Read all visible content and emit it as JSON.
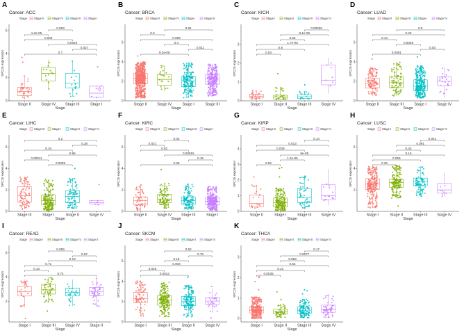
{
  "chart_data": [
    {
      "type": "box",
      "letter": "A",
      "title": "Cancer: ACC",
      "legend_title": "Stage",
      "xlabel": "Stage",
      "ylabel": "SPC25 expression",
      "ylim": [
        0,
        6.4
      ],
      "yticks": [
        0,
        2,
        4,
        6
      ],
      "categories": [
        "Stage II",
        "Stage IV",
        "Stage III",
        "Stage I"
      ],
      "boxes": [
        {
          "lo": 0.1,
          "q1": 0.45,
          "med": 0.8,
          "q3": 1.15,
          "hi": 2.2,
          "outliers": [
            3.3,
            3.7
          ]
        },
        {
          "lo": 0.95,
          "q1": 1.7,
          "med": 2.35,
          "q3": 2.85,
          "hi": 3.5,
          "outliers": []
        },
        {
          "lo": 0.35,
          "q1": 1.1,
          "med": 1.5,
          "q3": 2.35,
          "hi": 3.4,
          "outliers": []
        },
        {
          "lo": 0.2,
          "q1": 0.3,
          "med": 0.65,
          "q3": 1.25,
          "hi": 1.35,
          "outliers": [
            2.9
          ]
        }
      ],
      "comparisons": [
        {
          "a": 1,
          "b": 2,
          "p": "0.003"
        },
        {
          "a": 0,
          "b": 1,
          "p": "1.3e-05"
        },
        {
          "a": 0,
          "b": 2,
          "p": "0.004"
        },
        {
          "a": 1,
          "b": 3,
          "p": "0.0044"
        },
        {
          "a": 2,
          "b": 3,
          "p": "0.027"
        },
        {
          "a": 0,
          "b": 3,
          "p": "0.7"
        }
      ]
    },
    {
      "type": "box",
      "letter": "B",
      "title": "Cancer: BRCA",
      "legend_title": "Stage",
      "xlabel": "Stage",
      "ylabel": "SPC25 expression",
      "ylim": [
        0,
        7.7
      ],
      "yticks": [
        0,
        2,
        4,
        6
      ],
      "categories": [
        "Stage II",
        "Stage IV",
        "Stage I",
        "Stage III"
      ],
      "boxes": [
        {
          "lo": 0.3,
          "q1": 1.75,
          "med": 2.3,
          "q3": 2.8,
          "hi": 4.0,
          "outliers": [
            4.6
          ]
        },
        {
          "lo": 1.0,
          "q1": 1.6,
          "med": 2.2,
          "q3": 2.7,
          "hi": 3.6,
          "outliers": []
        },
        {
          "lo": 0.3,
          "q1": 1.45,
          "med": 2.05,
          "q3": 2.5,
          "hi": 3.9,
          "outliers": []
        },
        {
          "lo": 0.5,
          "q1": 1.7,
          "med": 2.25,
          "q3": 2.75,
          "hi": 3.8,
          "outliers": []
        }
      ],
      "comparisons": [
        {
          "a": 1,
          "b": 3,
          "p": "0.81"
        },
        {
          "a": 0,
          "b": 1,
          "p": "0.5"
        },
        {
          "a": 0,
          "b": 3,
          "p": "0.099"
        },
        {
          "a": 1,
          "b": 2,
          "p": "0.4"
        },
        {
          "a": 2,
          "b": 3,
          "p": "0.011"
        },
        {
          "a": 0,
          "b": 2,
          "p": "9.2e-08"
        }
      ]
    },
    {
      "type": "box",
      "letter": "C",
      "title": "Cancer: KICH",
      "legend_title": "Stage",
      "xlabel": "Stage",
      "ylabel": "SPC25 expression",
      "ylim": [
        0,
        4.0
      ],
      "yticks": [
        0,
        1,
        2,
        3
      ],
      "categories": [
        "Stage I",
        "Stage II",
        "Stage III",
        "Stage IV"
      ],
      "boxes": [
        {
          "lo": 0.05,
          "q1": 0.15,
          "med": 0.25,
          "q3": 0.35,
          "hi": 0.55,
          "outliers": []
        },
        {
          "lo": 0.05,
          "q1": 0.1,
          "med": 0.2,
          "q3": 0.3,
          "hi": 0.75,
          "outliers": [
            1.45
          ]
        },
        {
          "lo": 0.1,
          "q1": 0.12,
          "med": 0.22,
          "q3": 0.33,
          "hi": 0.5,
          "outliers": [
            0.85
          ]
        },
        {
          "lo": 0.4,
          "q1": 0.85,
          "med": 1.1,
          "q3": 1.9,
          "hi": 2.3,
          "outliers": []
        }
      ],
      "comparisons": [
        {
          "a": 2,
          "b": 3,
          "p": "0.00036"
        },
        {
          "a": 1,
          "b": 3,
          "p": "8.1e-05"
        },
        {
          "a": 1,
          "b": 2,
          "p": "0.55"
        },
        {
          "a": 0,
          "b": 3,
          "p": "1.7e-05"
        },
        {
          "a": 0,
          "b": 2,
          "p": "0.8"
        },
        {
          "a": 0,
          "b": 1,
          "p": "0.53"
        }
      ]
    },
    {
      "type": "box",
      "letter": "D",
      "title": "Cancer: LUAD",
      "legend_title": "Stage",
      "xlabel": "Stage",
      "ylabel": "SPC25 expression",
      "ylim": [
        0,
        7.7
      ],
      "yticks": [
        0,
        2,
        4,
        6
      ],
      "categories": [
        "Stage II",
        "Stage III",
        "Stage I",
        "Stage IV"
      ],
      "boxes": [
        {
          "lo": 0.5,
          "q1": 1.3,
          "med": 1.75,
          "q3": 2.3,
          "hi": 3.4,
          "outliers": [
            4.3
          ]
        },
        {
          "lo": 0.5,
          "q1": 1.35,
          "med": 1.85,
          "q3": 2.5,
          "hi": 4.0,
          "outliers": []
        },
        {
          "lo": 0.3,
          "q1": 1.05,
          "med": 1.5,
          "q3": 2.15,
          "hi": 3.6,
          "outliers": [
            4.5
          ]
        },
        {
          "lo": 0.3,
          "q1": 1.55,
          "med": 2.0,
          "q3": 2.45,
          "hi": 3.5,
          "outliers": []
        }
      ],
      "comparisons": [
        {
          "a": 1,
          "b": 3,
          "p": "0.6"
        },
        {
          "a": 0,
          "b": 3,
          "p": "0.23"
        },
        {
          "a": 0,
          "b": 1,
          "p": "0.44"
        },
        {
          "a": 1,
          "b": 2,
          "p": "0.0026"
        },
        {
          "a": 2,
          "b": 3,
          "p": "0.03"
        },
        {
          "a": 0,
          "b": 2,
          "p": "0.0091"
        }
      ]
    },
    {
      "type": "box",
      "letter": "E",
      "title": "Cancer: LIHC",
      "legend_title": "Stage",
      "xlabel": "Stage",
      "ylabel": "SPC25 expression",
      "ylim": [
        0,
        7.0
      ],
      "yticks": [
        0,
        2,
        4,
        6
      ],
      "categories": [
        "Stage III",
        "Stage I",
        "Stage II",
        "Stage IV"
      ],
      "boxes": [
        {
          "lo": 0.2,
          "q1": 0.85,
          "med": 1.45,
          "q3": 2.3,
          "hi": 3.2,
          "outliers": []
        },
        {
          "lo": 0.05,
          "q1": 0.6,
          "med": 1.0,
          "q3": 1.55,
          "hi": 3.0,
          "outliers": []
        },
        {
          "lo": 0.3,
          "q1": 0.8,
          "med": 1.4,
          "q3": 1.95,
          "hi": 3.1,
          "outliers": [
            4.0
          ]
        },
        {
          "lo": 0.6,
          "q1": 0.7,
          "med": 0.8,
          "q3": 1.0,
          "hi": 1.0,
          "outliers": [
            2.5
          ]
        }
      ],
      "comparisons": [
        {
          "a": 0,
          "b": 3,
          "p": "0.2"
        },
        {
          "a": 2,
          "b": 3,
          "p": "0.28"
        },
        {
          "a": 0,
          "b": 2,
          "p": "0.34"
        },
        {
          "a": 1,
          "b": 3,
          "p": "0.66"
        },
        {
          "a": 0,
          "b": 1,
          "p": "0.00011"
        },
        {
          "a": 1,
          "b": 2,
          "p": "0.0035"
        }
      ]
    },
    {
      "type": "box",
      "letter": "F",
      "title": "Cancer: KIRC",
      "legend_title": "Stage",
      "xlabel": "Stage",
      "ylabel": "SPC25 expression",
      "ylim": [
        0,
        7.0
      ],
      "yticks": [
        0,
        2,
        4,
        6
      ],
      "categories": [
        "Stage II",
        "Stage IV",
        "Stage III",
        "Stage I"
      ],
      "boxes": [
        {
          "lo": 0.1,
          "q1": 0.6,
          "med": 1.0,
          "q3": 1.35,
          "hi": 2.5,
          "outliers": []
        },
        {
          "lo": 0.3,
          "q1": 0.8,
          "med": 1.15,
          "q3": 1.6,
          "hi": 2.6,
          "outliers": [
            3.9
          ]
        },
        {
          "lo": 0.2,
          "q1": 0.65,
          "med": 1.0,
          "q3": 1.35,
          "hi": 2.6,
          "outliers": []
        },
        {
          "lo": 0.1,
          "q1": 0.6,
          "med": 0.95,
          "q3": 1.3,
          "hi": 2.3,
          "outliers": []
        }
      ],
      "comparisons": [
        {
          "a": 1,
          "b": 2,
          "p": "0.02"
        },
        {
          "a": 0,
          "b": 1,
          "p": "0.021"
        },
        {
          "a": 0,
          "b": 2,
          "p": "0.81"
        },
        {
          "a": 1,
          "b": 3,
          "p": "0.00015"
        },
        {
          "a": 2,
          "b": 3,
          "p": "0.15"
        },
        {
          "a": 0,
          "b": 3,
          "p": "0.68"
        }
      ]
    },
    {
      "type": "box",
      "letter": "G",
      "title": "Cancer: KIRP",
      "legend_title": "Stage",
      "xlabel": "Stage",
      "ylabel": "SPC25 expression",
      "ylim": [
        0,
        4.8
      ],
      "yticks": [
        0,
        1,
        2,
        3,
        4
      ],
      "categories": [
        "Stage II",
        "Stage I",
        "Stage III",
        "Stage IV"
      ],
      "boxes": [
        {
          "lo": 0.2,
          "q1": 0.3,
          "med": 0.5,
          "q3": 1.05,
          "hi": 1.7,
          "outliers": [
            2.2
          ]
        },
        {
          "lo": 0.05,
          "q1": 0.3,
          "med": 0.55,
          "q3": 0.85,
          "hi": 1.5,
          "outliers": [
            2.8,
            2.75,
            2.2
          ]
        },
        {
          "lo": 0.15,
          "q1": 0.55,
          "med": 0.9,
          "q3": 1.45,
          "hi": 2.3,
          "outliers": []
        },
        {
          "lo": 0.4,
          "q1": 0.75,
          "med": 1.0,
          "q3": 1.7,
          "hi": 2.7,
          "outliers": []
        }
      ],
      "comparisons": [
        {
          "a": 2,
          "b": 3,
          "p": "0.14"
        },
        {
          "a": 0,
          "b": 3,
          "p": "0.013"
        },
        {
          "a": 0,
          "b": 2,
          "p": "0.039"
        },
        {
          "a": 1,
          "b": 3,
          "p": "9e-05"
        },
        {
          "a": 1,
          "b": 2,
          "p": "1.3e-05"
        },
        {
          "a": 0,
          "b": 1,
          "p": "0.52"
        }
      ]
    },
    {
      "type": "box",
      "letter": "H",
      "title": "Cancer: LUSC",
      "legend_title": "Stage",
      "xlabel": "Stage",
      "ylabel": "SPC25 expression",
      "ylim": [
        0,
        7.0
      ],
      "yticks": [
        2,
        4,
        6
      ],
      "categories": [
        "Stage I",
        "Stage II",
        "Stage III",
        "Stage IV"
      ],
      "boxes": [
        {
          "lo": 0.3,
          "q1": 2.05,
          "med": 2.55,
          "q3": 3.05,
          "hi": 4.2,
          "outliers": []
        },
        {
          "lo": 1.2,
          "q1": 2.25,
          "med": 2.7,
          "q3": 3.0,
          "hi": 4.3,
          "outliers": [
            0.5
          ]
        },
        {
          "lo": 1.4,
          "q1": 2.4,
          "med": 2.75,
          "q3": 3.1,
          "hi": 4.2,
          "outliers": []
        },
        {
          "lo": 1.4,
          "q1": 1.7,
          "med": 2.0,
          "q3": 2.6,
          "hi": 3.6,
          "outliers": []
        }
      ],
      "comparisons": [
        {
          "a": 2,
          "b": 3,
          "p": "0.041"
        },
        {
          "a": 1,
          "b": 3,
          "p": "0.091"
        },
        {
          "a": 1,
          "b": 2,
          "p": "0.43"
        },
        {
          "a": 0,
          "b": 3,
          "p": "0.16"
        },
        {
          "a": 0,
          "b": 2,
          "p": "0.059"
        },
        {
          "a": 0,
          "b": 1,
          "p": "0.26"
        }
      ]
    },
    {
      "type": "box",
      "letter": "I",
      "title": "Cancer: READ",
      "legend_title": "Stage",
      "xlabel": "Stage",
      "ylabel": "SPC25 expression",
      "ylim": [
        0.3,
        6.5
      ],
      "yticks": [
        2,
        4,
        6
      ],
      "categories": [
        "Stage I",
        "Stage III",
        "Stage IV",
        "Stage II"
      ],
      "boxes": [
        {
          "lo": 1.5,
          "q1": 2.45,
          "med": 2.8,
          "q3": 3.25,
          "hi": 3.8,
          "outliers": [
            0.6
          ]
        },
        {
          "lo": 1.9,
          "q1": 2.6,
          "med": 2.95,
          "q3": 3.4,
          "hi": 4.0,
          "outliers": [
            1.2
          ]
        },
        {
          "lo": 1.6,
          "q1": 2.45,
          "med": 2.75,
          "q3": 3.1,
          "hi": 3.8,
          "outliers": []
        },
        {
          "lo": 1.5,
          "q1": 2.5,
          "med": 2.8,
          "q3": 3.15,
          "hi": 3.9,
          "outliers": []
        }
      ],
      "comparisons": [
        {
          "a": 1,
          "b": 2,
          "p": "0.059"
        },
        {
          "a": 2,
          "b": 3,
          "p": "0.57"
        },
        {
          "a": 1,
          "b": 3,
          "p": "0.13"
        },
        {
          "a": 0,
          "b": 2,
          "p": "0.71"
        },
        {
          "a": 0,
          "b": 1,
          "p": "0.13"
        },
        {
          "a": 0,
          "b": 3,
          "p": "0.72"
        }
      ]
    },
    {
      "type": "box",
      "letter": "J",
      "title": "Cancer: SKCM",
      "legend_title": "Stage",
      "xlabel": "Stage",
      "ylabel": "SPC25 expression",
      "ylim": [
        0,
        7.4
      ],
      "yticks": [
        0,
        2,
        4,
        6
      ],
      "categories": [
        "Stage I",
        "Stage III",
        "Stage II",
        "Stage IV"
      ],
      "boxes": [
        {
          "lo": 0.5,
          "q1": 1.9,
          "med": 2.3,
          "q3": 2.9,
          "hi": 4.1,
          "outliers": []
        },
        {
          "lo": 0.5,
          "q1": 1.65,
          "med": 2.15,
          "q3": 2.6,
          "hi": 3.9,
          "outliers": []
        },
        {
          "lo": 0.5,
          "q1": 1.6,
          "med": 2.0,
          "q3": 2.5,
          "hi": 3.6,
          "outliers": [
            4.4
          ]
        },
        {
          "lo": 0.9,
          "q1": 1.75,
          "med": 2.05,
          "q3": 2.4,
          "hi": 3.3,
          "outliers": [
            3.5,
            0.4
          ]
        }
      ],
      "comparisons": [
        {
          "a": 1,
          "b": 3,
          "p": "0.52"
        },
        {
          "a": 2,
          "b": 3,
          "p": "0.76"
        },
        {
          "a": 1,
          "b": 2,
          "p": "0.15"
        },
        {
          "a": 0,
          "b": 3,
          "p": "0.004"
        },
        {
          "a": 0,
          "b": 1,
          "p": "0.026"
        },
        {
          "a": 0,
          "b": 2,
          "p": "0.0012"
        }
      ]
    },
    {
      "type": "box",
      "letter": "K",
      "title": "Cancer: THCA",
      "legend_title": "Stage",
      "xlabel": "Stage",
      "ylabel": "SPC25 expression",
      "ylim": [
        -0.17,
        3.5
      ],
      "yticks": [
        0,
        1,
        2,
        3
      ],
      "categories": [
        "Stage I",
        "Stage II",
        "Stage III",
        "Stage IV"
      ],
      "boxes": [
        {
          "lo": 0.0,
          "q1": 0.27,
          "med": 0.4,
          "q3": 0.58,
          "hi": 1.05,
          "outliers": [
            1.4,
            1.8,
            2.0,
            2.05
          ]
        },
        {
          "lo": 0.05,
          "q1": 0.22,
          "med": 0.32,
          "q3": 0.45,
          "hi": 0.7,
          "outliers": [
            0.92,
            1.3
          ]
        },
        {
          "lo": 0.02,
          "q1": 0.25,
          "med": 0.38,
          "q3": 0.57,
          "hi": 0.95,
          "outliers": [
            1.2,
            1.35,
            1.4
          ]
        },
        {
          "lo": 0.05,
          "q1": 0.3,
          "med": 0.45,
          "q3": 0.65,
          "hi": 1.2,
          "outliers": []
        }
      ],
      "comparisons": [
        {
          "a": 2,
          "b": 3,
          "p": "0.17"
        },
        {
          "a": 1,
          "b": 3,
          "p": "0.0077"
        },
        {
          "a": 1,
          "b": 2,
          "p": "0.093"
        },
        {
          "a": 0,
          "b": 3,
          "p": "0.53"
        },
        {
          "a": 0,
          "b": 2,
          "p": "0.21"
        },
        {
          "a": 0,
          "b": 1,
          "p": "0.0035"
        }
      ]
    }
  ],
  "colors": [
    "#F8766D",
    "#7CAE00",
    "#00BFC4",
    "#C77CFF"
  ]
}
